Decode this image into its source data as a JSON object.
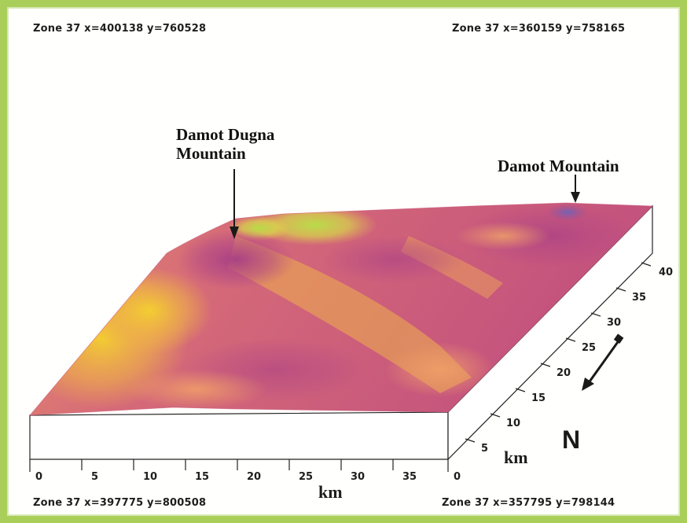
{
  "corners": {
    "top_left": "Zone 37  x=400138  y=760528",
    "top_right": "Zone 37  x=360159  y=758165",
    "bottom_left": "Zone 37  x=397775  y=800508",
    "bottom_right": "Zone 37  x=357795  y=798144"
  },
  "features": {
    "damot_dugna_line1": "Damot Dugna",
    "damot_dugna_line2": "Mountain",
    "damot": "Damot Mountain"
  },
  "axes": {
    "x_unit": "km",
    "y_unit": "km",
    "x_ticks": [
      "0",
      "5",
      "10",
      "15",
      "20",
      "25",
      "30",
      "35",
      "0"
    ],
    "y_ticks": [
      "5",
      "10",
      "15",
      "20",
      "25",
      "30",
      "35",
      "40"
    ]
  },
  "north_label": "N",
  "colors": {
    "frame": "#a9cf5a",
    "surface_low": "#c0487a",
    "surface_mid": "#e88a6e",
    "surface_high": "#f2c63a",
    "surface_peak": "#b4d94a"
  }
}
